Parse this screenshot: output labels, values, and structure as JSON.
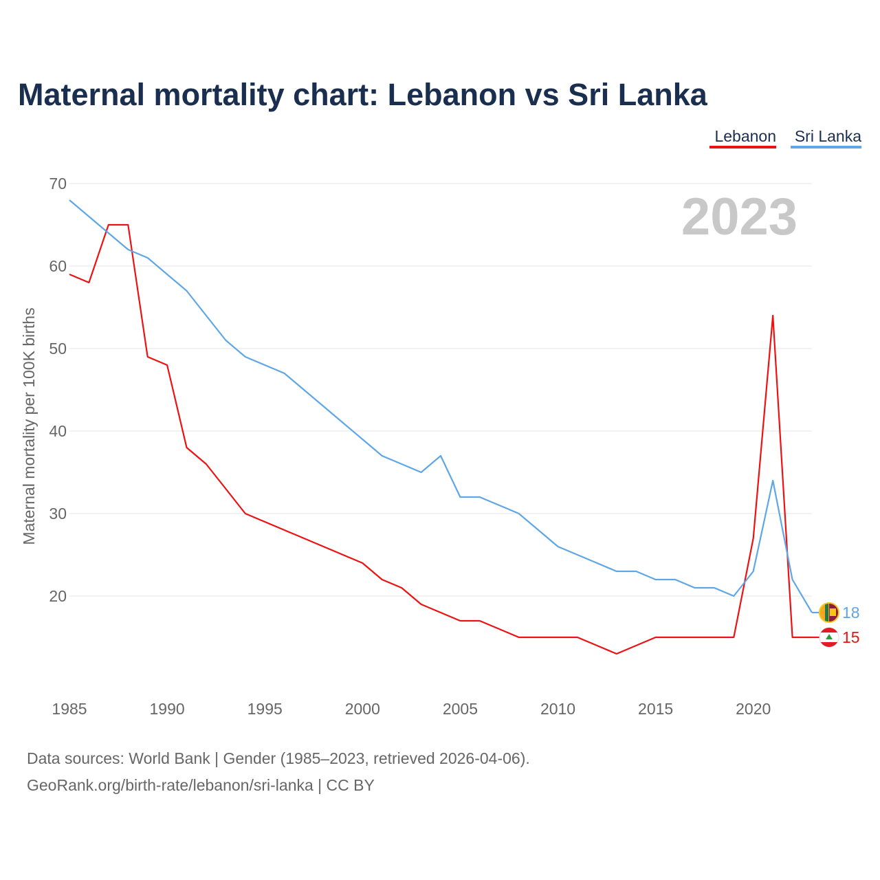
{
  "chart_data": {
    "type": "line",
    "title": "Maternal mortality chart: Lebanon vs Sri Lanka",
    "ylabel": "Maternal mortality per 100K births",
    "xlabel": "",
    "year_label": "2023",
    "xlim": [
      1985,
      2023
    ],
    "ylim": [
      10,
      70
    ],
    "yticks": [
      20,
      30,
      40,
      50,
      60,
      70
    ],
    "xticks": [
      1985,
      1990,
      1995,
      2000,
      2005,
      2010,
      2015,
      2020
    ],
    "grid": true,
    "legend_position": "top-right",
    "x": [
      1985,
      1986,
      1987,
      1988,
      1989,
      1990,
      1991,
      1992,
      1993,
      1994,
      1995,
      1996,
      1997,
      1998,
      1999,
      2000,
      2001,
      2002,
      2003,
      2004,
      2005,
      2006,
      2007,
      2008,
      2009,
      2010,
      2011,
      2012,
      2013,
      2014,
      2015,
      2016,
      2017,
      2018,
      2019,
      2020,
      2021,
      2022,
      2023
    ],
    "series": [
      {
        "name": "Lebanon",
        "color": "#ee1111",
        "end_label": "15",
        "flag": "lebanon-flag-icon",
        "values": [
          59,
          58,
          65,
          65,
          49,
          48,
          38,
          36,
          33,
          30,
          29,
          28,
          27,
          26,
          25,
          24,
          22,
          21,
          19,
          18,
          17,
          17,
          16,
          15,
          15,
          15,
          15,
          14,
          13,
          14,
          15,
          15,
          15,
          15,
          15,
          27,
          54,
          15,
          15
        ]
      },
      {
        "name": "Sri Lanka",
        "color": "#5ea6e6",
        "end_label": "18",
        "flag": "sri-lanka-flag-icon",
        "values": [
          68,
          66,
          64,
          62,
          61,
          59,
          57,
          54,
          51,
          49,
          48,
          47,
          45,
          43,
          41,
          39,
          37,
          36,
          35,
          37,
          32,
          32,
          31,
          30,
          28,
          26,
          25,
          24,
          23,
          23,
          22,
          22,
          21,
          21,
          20,
          23,
          34,
          22,
          18
        ]
      }
    ]
  },
  "source": {
    "line1": "Data sources: World Bank | Gender (1985–2023, retrieved 2026-04-06).",
    "line2": "GeoRank.org/birth-rate/lebanon/sri-lanka | CC BY"
  }
}
